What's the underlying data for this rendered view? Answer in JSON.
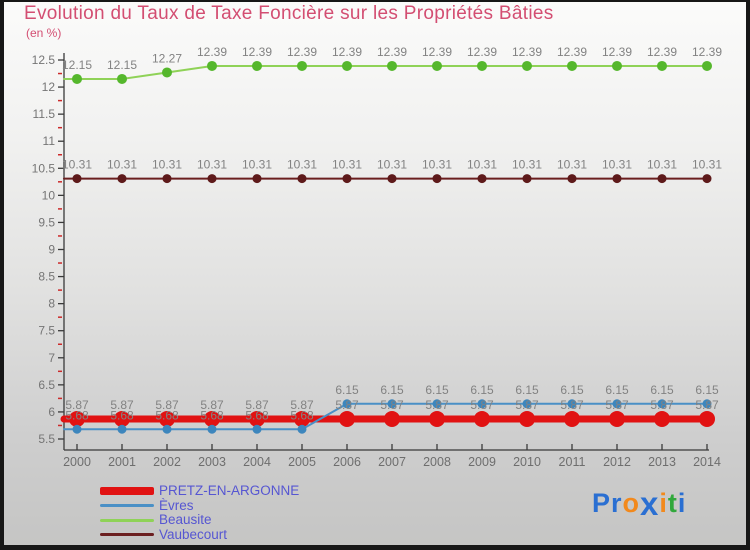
{
  "chart_data": {
    "type": "line",
    "title": "Evolution du Taux de Taxe Foncière sur les Propriétés Bâties",
    "subtitle": "(en %)",
    "x": [
      2000,
      2001,
      2002,
      2003,
      2004,
      2005,
      2006,
      2007,
      2008,
      2009,
      2010,
      2011,
      2012,
      2013,
      2014
    ],
    "ylim": [
      5.5,
      12.5
    ],
    "y_tick_step": 0.5,
    "y_minor_step": 0.25,
    "y_tick_labels": [
      "5.5",
      "6",
      "6.5",
      "7",
      "7.5",
      "8",
      "8.5",
      "9",
      "9.5",
      "10",
      "10.5",
      "11",
      "11.5",
      "12",
      "12.5"
    ],
    "grid": false,
    "legend_position": "bottom-left",
    "series": [
      {
        "name": "PRETZ-EN-ARGONNE",
        "color": "#e11212",
        "marker_color": "#e11212",
        "line_width": 7,
        "marker_radius": 8,
        "values": [
          5.87,
          5.87,
          5.87,
          5.87,
          5.87,
          5.87,
          5.87,
          5.87,
          5.87,
          5.87,
          5.87,
          5.87,
          5.87,
          5.87,
          5.87
        ]
      },
      {
        "name": "Èvres",
        "color": "#4a90c6",
        "marker_color": "#3d86bd",
        "line_width": 2,
        "marker_radius": 4.5,
        "values": [
          5.68,
          5.68,
          5.68,
          5.68,
          5.68,
          5.68,
          6.15,
          6.15,
          6.15,
          6.15,
          6.15,
          6.15,
          6.15,
          6.15,
          6.15
        ]
      },
      {
        "name": "Beausite",
        "color": "#8fd257",
        "marker_color": "#55b72c",
        "line_width": 2,
        "marker_radius": 5,
        "values": [
          12.15,
          12.15,
          12.27,
          12.39,
          12.39,
          12.39,
          12.39,
          12.39,
          12.39,
          12.39,
          12.39,
          12.39,
          12.39,
          12.39,
          12.39
        ]
      },
      {
        "name": "Vaubecourt",
        "color": "#6b1f1f",
        "marker_color": "#5e1a1a",
        "line_width": 2,
        "marker_radius": 4.5,
        "values": [
          10.31,
          10.31,
          10.31,
          10.31,
          10.31,
          10.31,
          10.31,
          10.31,
          10.31,
          10.31,
          10.31,
          10.31,
          10.31,
          10.31,
          10.31
        ]
      }
    ],
    "colors": {
      "title": "#d34e72",
      "data_label": "#828282",
      "axis": "#3a3a3a",
      "tick_label": "#757575",
      "minor_tick": "#cc2a2a",
      "legend_text": "#5656d2"
    }
  },
  "logo": {
    "text": "Proxiti",
    "letters": [
      {
        "ch": "P",
        "color": "#2a6fd2",
        "big": false
      },
      {
        "ch": "r",
        "color": "#2a6fd2",
        "big": false
      },
      {
        "ch": "o",
        "color": "#f2891c",
        "big": false
      },
      {
        "ch": "x",
        "color": "#2a6fd2",
        "big": true
      },
      {
        "ch": "i",
        "color": "#f2891c",
        "big": false
      },
      {
        "ch": "t",
        "color": "#31a83c",
        "big": false
      },
      {
        "ch": "i",
        "color": "#2a6fd2",
        "big": false
      }
    ]
  }
}
